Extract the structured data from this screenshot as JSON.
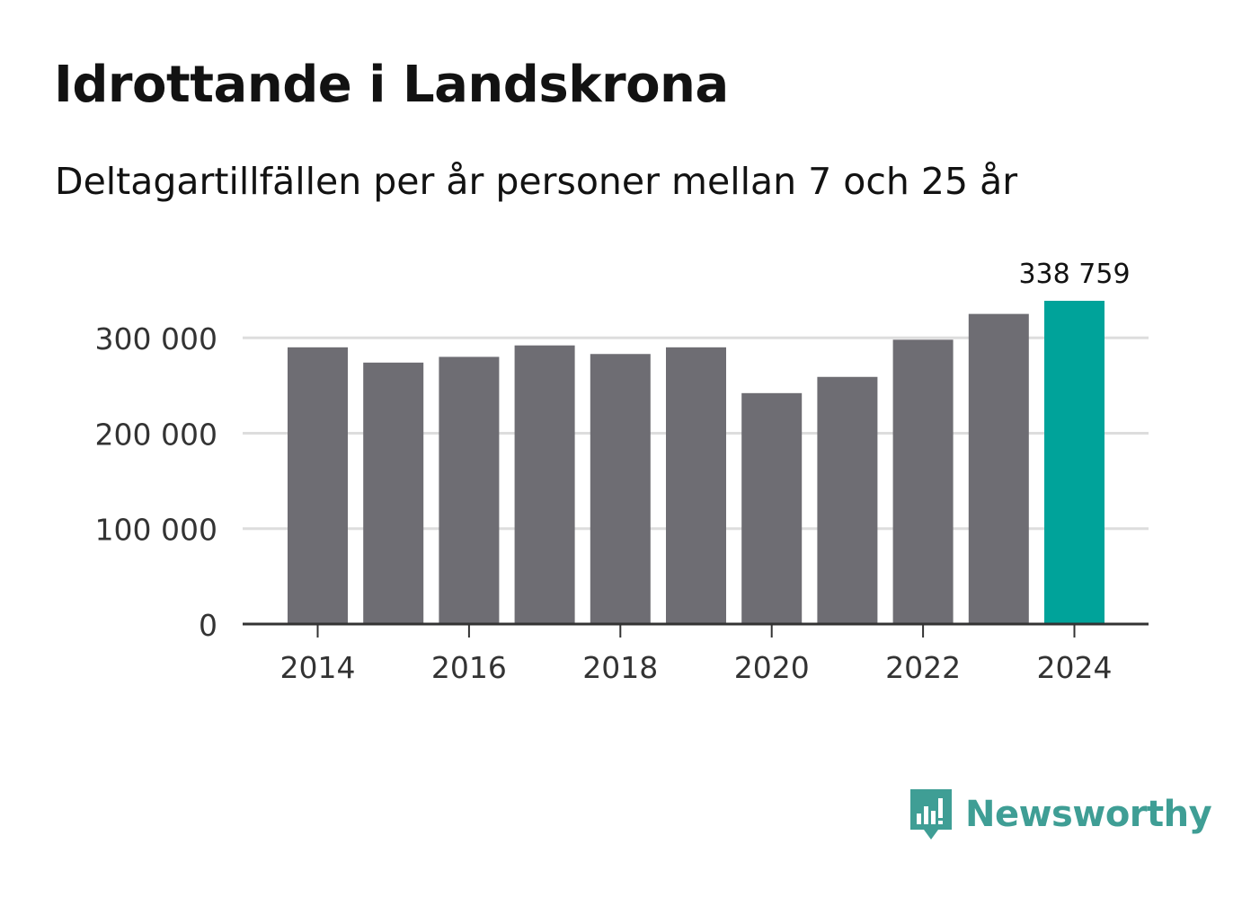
{
  "chart_data": {
    "type": "bar",
    "title": "Idrottande i Landskrona",
    "subtitle": "Deltagartillfällen per år personer mellan 7 och 25 år",
    "categories": [
      "2014",
      "2015",
      "2016",
      "2017",
      "2018",
      "2019",
      "2020",
      "2021",
      "2022",
      "2023",
      "2024"
    ],
    "values": [
      290000,
      274000,
      280000,
      292000,
      283000,
      290000,
      242000,
      259000,
      298000,
      325000,
      338759
    ],
    "x_tick_labels": [
      "2014",
      "2016",
      "2018",
      "2020",
      "2022",
      "2024"
    ],
    "y_ticks": [
      0,
      100000,
      200000,
      300000
    ],
    "y_tick_labels": [
      "0",
      "100 000",
      "200 000",
      "300 000"
    ],
    "ylim": [
      0,
      338759
    ],
    "highlight_label": "338 759",
    "highlight_index": 10,
    "xlabel": "",
    "ylabel": "",
    "grid": true,
    "colors": {
      "bar": "#6e6d73",
      "highlight": "#00a39a",
      "grid": "#dddddd",
      "axis": "#333333",
      "tick_text": "#333333"
    }
  },
  "brand": {
    "name": "Newsworthy",
    "icon": "newsworthy-logo-icon",
    "color": "#3f9e95"
  }
}
